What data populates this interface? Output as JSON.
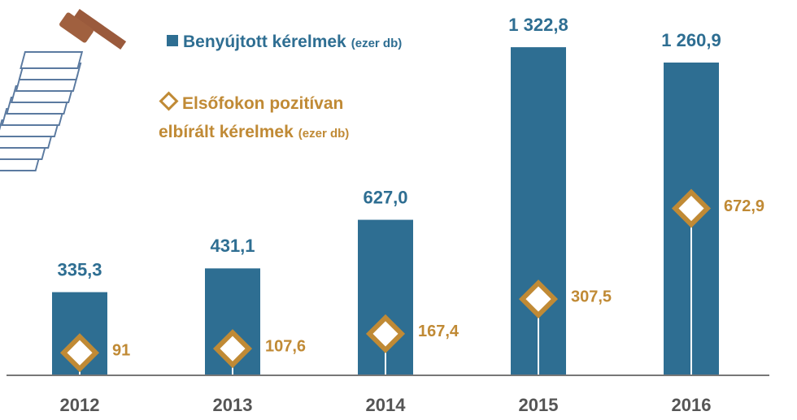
{
  "chart_data": {
    "type": "bar_diamond",
    "categories": [
      "2012",
      "2013",
      "2014",
      "2015",
      "2016"
    ],
    "series": [
      {
        "name": "Benyújtott kérelmek",
        "unit": "(ezer db)",
        "color": "#2e6e92",
        "values": [
          335.3,
          431.1,
          627.0,
          1322.8,
          1260.9
        ],
        "value_labels": [
          "335,3",
          "431,1",
          "627,0",
          "1 322,8",
          "1 260,9"
        ]
      },
      {
        "name": "Elsőfokon pozitívan elbírált kérelmek",
        "unit": "(ezer db)",
        "color": "#c08a35",
        "values": [
          91,
          107.6,
          167.4,
          307.5,
          672.9
        ],
        "value_labels": [
          "91",
          "107,6",
          "167,4",
          "307,5",
          "672,9"
        ]
      }
    ],
    "ylim": [
      0,
      1500
    ]
  }
}
